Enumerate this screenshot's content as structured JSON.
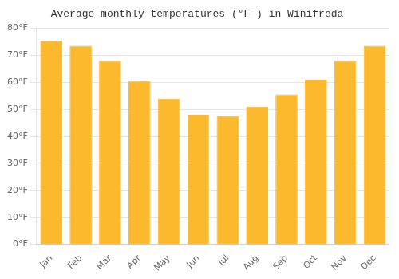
{
  "chart_data": {
    "type": "bar",
    "title": "Average monthly temperatures (°F ) in Winifreda",
    "categories": [
      "Jan",
      "Feb",
      "Mar",
      "Apr",
      "May",
      "Jun",
      "Jul",
      "Aug",
      "Sep",
      "Oct",
      "Nov",
      "Dec"
    ],
    "values": [
      75.5,
      73.5,
      68,
      60.5,
      54,
      48,
      47.5,
      51,
      55.5,
      61,
      68,
      73.5
    ],
    "color": "#FDB92E",
    "ylim": [
      0,
      80
    ],
    "yticks": [
      {
        "value": 0,
        "label": "0°F"
      },
      {
        "value": 10,
        "label": "10°F"
      },
      {
        "value": 20,
        "label": "20°F"
      },
      {
        "value": 30,
        "label": "30°F"
      },
      {
        "value": 40,
        "label": "40°F"
      },
      {
        "value": 50,
        "label": "50°F"
      },
      {
        "value": 60,
        "label": "60°F"
      },
      {
        "value": 70,
        "label": "70°F"
      },
      {
        "value": 80,
        "label": "80°F"
      }
    ],
    "grid": true
  }
}
